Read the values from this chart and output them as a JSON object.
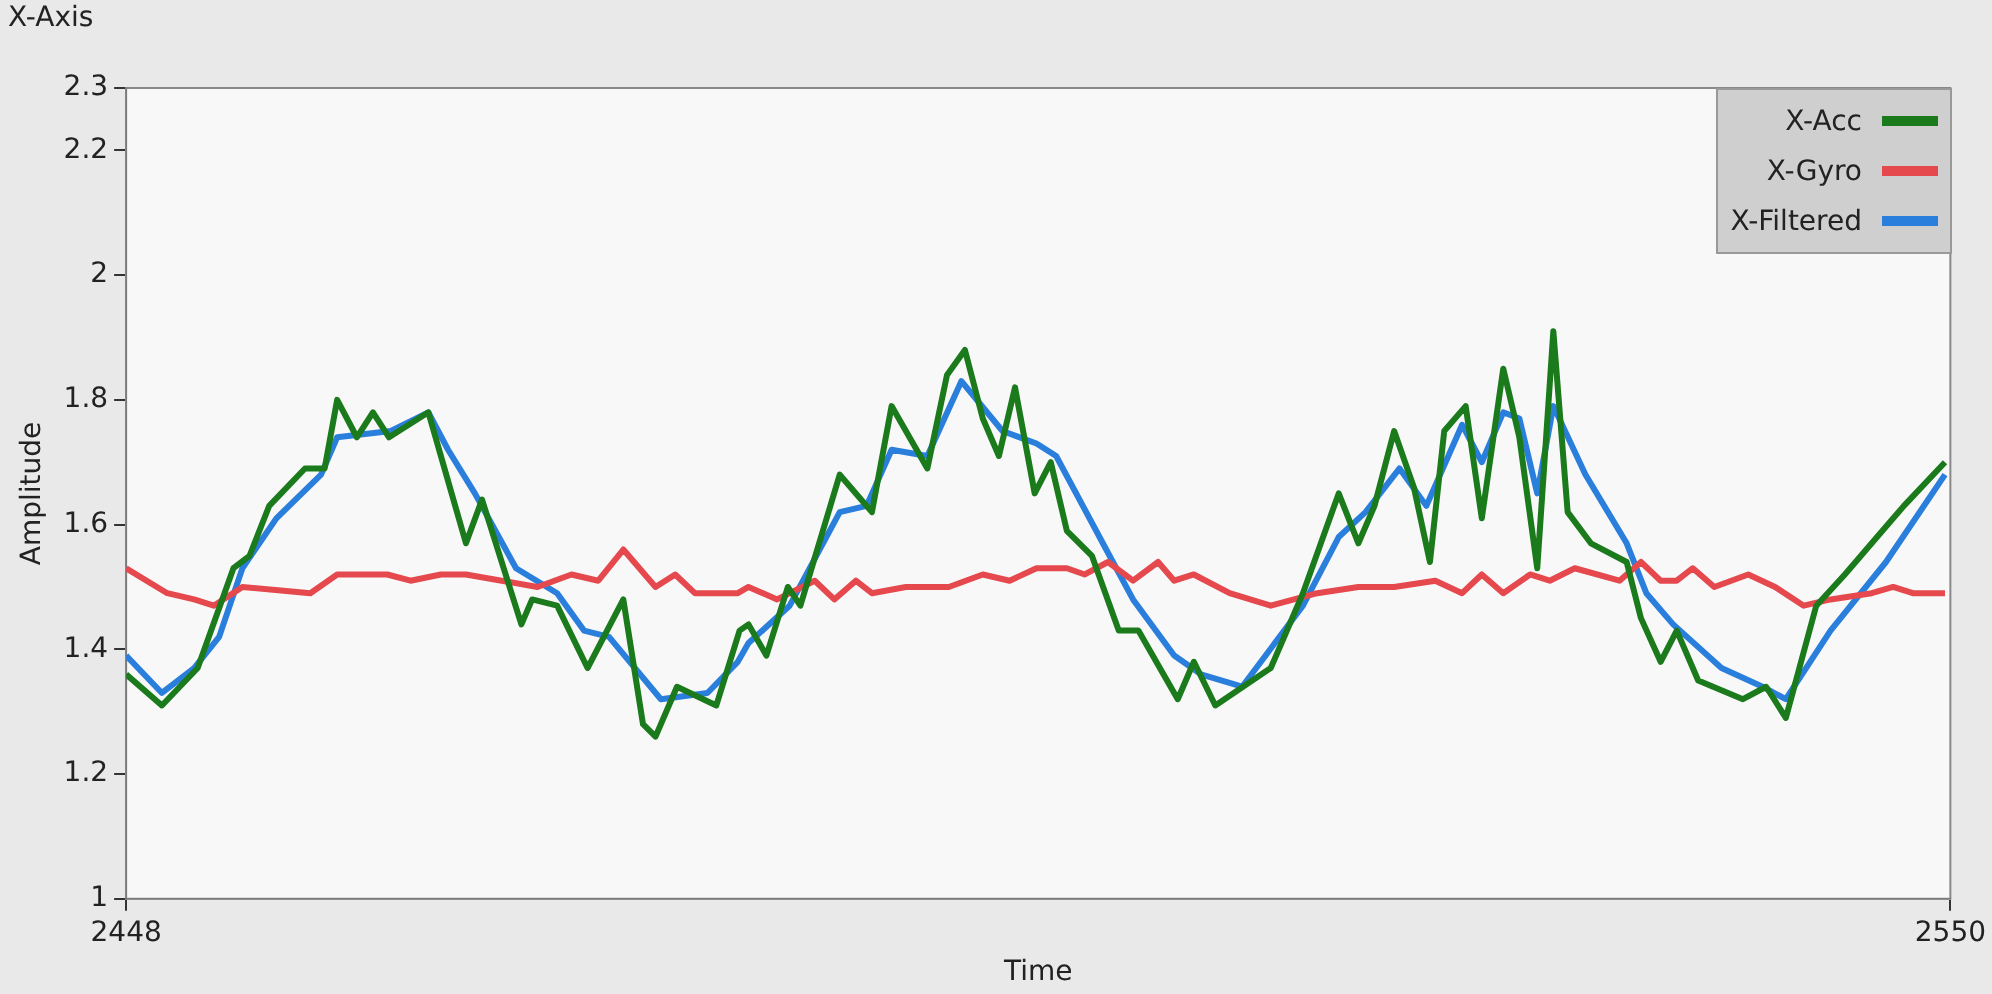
{
  "chart_data": {
    "type": "line",
    "title": "X-Axis",
    "xlabel": "Time",
    "ylabel": "Amplitude",
    "xlim": [
      2448,
      2550
    ],
    "xticks": [
      2448,
      2550
    ],
    "ylim": [
      1,
      2.3
    ],
    "yticks": [
      1,
      1.2,
      1.4,
      1.6,
      1.8,
      2,
      2.2,
      2.3
    ],
    "grid": false,
    "legend": "top right",
    "series": [
      {
        "name": "X-Acc",
        "color": "#1b7a1b",
        "x": [
          2448,
          2450.0,
          2452.0,
          2454.0,
          2454.9,
          2456.0,
          2458.0,
          2459.1,
          2459.8,
          2460.9,
          2461.8,
          2462.7,
          2464.9,
          2467.0,
          2467.9,
          2470.1,
          2470.7,
          2472.1,
          2473.8,
          2475.8,
          2476.9,
          2477.6,
          2478.8,
          2481.0,
          2482.3,
          2482.8,
          2483.8,
          2485.0,
          2485.7,
          2487.9,
          2489.7,
          2490.8,
          2492.8,
          2493.9,
          2494.9,
          2495.9,
          2496.8,
          2497.7,
          2498.8,
          2499.7,
          2500.6,
          2502.0,
          2503.5,
          2504.6,
          2506.8,
          2507.7,
          2508.9,
          2512.0,
          2513.8,
          2515.8,
          2516.9,
          2517.8,
          2518.9,
          2520.0,
          2520.9,
          2521.7,
          2522.9,
          2523.8,
          2525.0,
          2525.9,
          2526.9,
          2527.8,
          2528.6,
          2529.9,
          2531.9,
          2532.7,
          2533.8,
          2534.7,
          2535.9,
          2538.4,
          2539.7,
          2540.8,
          2542.5,
          2544.1,
          2545.9,
          2547.4,
          2549.7
        ],
        "values": [
          1.36,
          1.31,
          1.37,
          1.53,
          1.55,
          1.63,
          1.69,
          1.69,
          1.8,
          1.74,
          1.78,
          1.74,
          1.78,
          1.57,
          1.64,
          1.44,
          1.48,
          1.47,
          1.37,
          1.48,
          1.28,
          1.26,
          1.34,
          1.31,
          1.43,
          1.44,
          1.39,
          1.5,
          1.47,
          1.68,
          1.62,
          1.79,
          1.69,
          1.84,
          1.88,
          1.77,
          1.71,
          1.82,
          1.65,
          1.7,
          1.59,
          1.55,
          1.43,
          1.43,
          1.32,
          1.38,
          1.31,
          1.37,
          1.49,
          1.65,
          1.57,
          1.63,
          1.75,
          1.66,
          1.54,
          1.75,
          1.79,
          1.61,
          1.85,
          1.74,
          1.53,
          1.91,
          1.62,
          1.57,
          1.54,
          1.45,
          1.38,
          1.43,
          1.35,
          1.32,
          1.34,
          1.29,
          1.47,
          1.52,
          1.58,
          1.63,
          1.7
        ]
      },
      {
        "name": "X-Gyro",
        "color": "#e5484d",
        "x": [
          2448,
          2450.3,
          2451.8,
          2452.9,
          2454.5,
          2458.3,
          2459.8,
          2462.6,
          2463.9,
          2465.6,
          2467.0,
          2469.0,
          2471.0,
          2472.9,
          2474.4,
          2475.8,
          2477.6,
          2478.7,
          2479.8,
          2482.2,
          2482.8,
          2484.4,
          2486.5,
          2487.6,
          2488.8,
          2489.7,
          2491.6,
          2494.0,
          2495.9,
          2497.4,
          2498.9,
          2500.6,
          2501.6,
          2502.9,
          2504.3,
          2505.7,
          2506.6,
          2507.7,
          2509.7,
          2512.0,
          2514.6,
          2516.9,
          2518.9,
          2521.2,
          2522.7,
          2523.8,
          2525.0,
          2526.5,
          2527.6,
          2529.0,
          2531.5,
          2532.7,
          2533.8,
          2534.7,
          2535.6,
          2536.8,
          2538.7,
          2540.2,
          2541.8,
          2543.3,
          2545.6,
          2546.8,
          2547.9,
          2549.7
        ],
        "values": [
          1.53,
          1.49,
          1.48,
          1.47,
          1.5,
          1.49,
          1.52,
          1.52,
          1.51,
          1.52,
          1.52,
          1.51,
          1.5,
          1.52,
          1.51,
          1.56,
          1.5,
          1.52,
          1.49,
          1.49,
          1.5,
          1.48,
          1.51,
          1.48,
          1.51,
          1.49,
          1.5,
          1.5,
          1.52,
          1.51,
          1.53,
          1.53,
          1.52,
          1.54,
          1.51,
          1.54,
          1.51,
          1.52,
          1.49,
          1.47,
          1.49,
          1.5,
          1.5,
          1.51,
          1.49,
          1.52,
          1.49,
          1.52,
          1.51,
          1.53,
          1.51,
          1.54,
          1.51,
          1.51,
          1.53,
          1.5,
          1.52,
          1.5,
          1.47,
          1.48,
          1.49,
          1.5,
          1.49,
          1.49
        ]
      },
      {
        "name": "X-Filtered",
        "color": "#2b7fdc",
        "x": [
          2448,
          2450.0,
          2451.8,
          2453.2,
          2454.5,
          2456.4,
          2458.9,
          2459.8,
          2462.8,
          2464.9,
          2466.0,
          2467.5,
          2469.8,
          2472.1,
          2473.6,
          2475.0,
          2477.9,
          2480.5,
          2482.2,
          2482.8,
          2485.1,
          2487.9,
          2489.4,
          2490.8,
          2492.8,
          2494.7,
          2497.0,
          2498.9,
          2500.0,
          2502.8,
          2504.3,
          2506.6,
          2508.1,
          2510.4,
          2513.8,
          2515.8,
          2517.3,
          2519.2,
          2520.7,
          2522.7,
          2523.8,
          2525.0,
          2525.9,
          2526.9,
          2527.8,
          2529.6,
          2531.9,
          2533.0,
          2534.5,
          2537.2,
          2539.5,
          2540.8,
          2543.3,
          2546.4,
          2549.7
        ],
        "values": [
          1.39,
          1.33,
          1.37,
          1.42,
          1.53,
          1.61,
          1.68,
          1.74,
          1.75,
          1.78,
          1.72,
          1.65,
          1.53,
          1.49,
          1.43,
          1.42,
          1.32,
          1.33,
          1.38,
          1.41,
          1.47,
          1.62,
          1.63,
          1.72,
          1.71,
          1.83,
          1.75,
          1.73,
          1.71,
          1.56,
          1.48,
          1.39,
          1.36,
          1.34,
          1.47,
          1.58,
          1.62,
          1.69,
          1.63,
          1.76,
          1.7,
          1.78,
          1.77,
          1.65,
          1.79,
          1.68,
          1.57,
          1.49,
          1.44,
          1.37,
          1.34,
          1.32,
          1.43,
          1.54,
          1.68
        ]
      }
    ]
  }
}
